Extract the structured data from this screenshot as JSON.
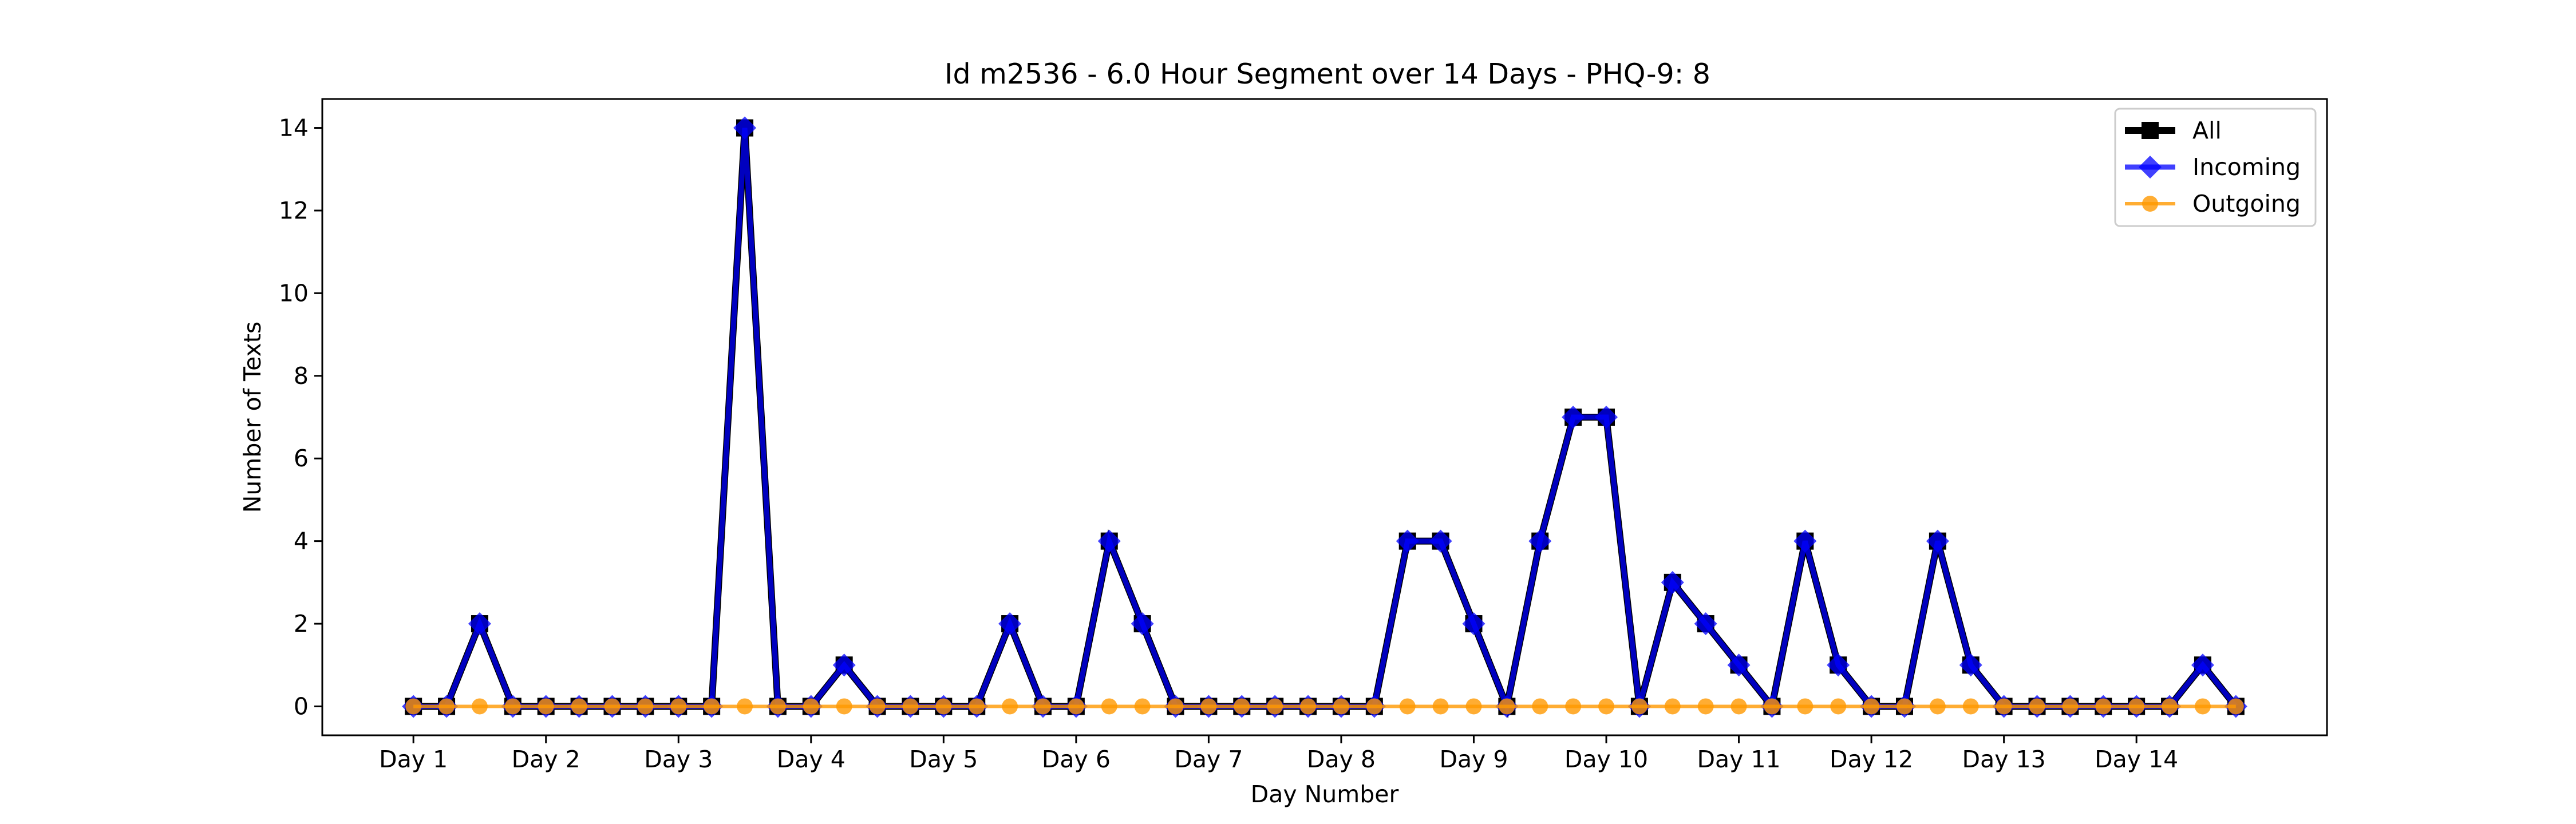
{
  "chart_data": {
    "type": "line",
    "title": "Id m2536 - 6.0 Hour Segment over 14 Days - PHQ-9: 8",
    "xlabel": "Day Number",
    "ylabel": "Number of Texts",
    "ylim": [
      -0.7,
      14.7
    ],
    "xlim": [
      -2.75,
      57.75
    ],
    "yticks": [
      0,
      2,
      4,
      6,
      8,
      10,
      12,
      14
    ],
    "xtick_positions": [
      0,
      4,
      8,
      12,
      16,
      20,
      24,
      28,
      32,
      36,
      40,
      44,
      48,
      52
    ],
    "xtick_labels": [
      "Day 1",
      "Day 2",
      "Day 3",
      "Day 4",
      "Day 5",
      "Day 6",
      "Day 7",
      "Day 8",
      "Day 9",
      "Day 10",
      "Day 11",
      "Day 12",
      "Day 13",
      "Day 14"
    ],
    "grid": false,
    "legend_position": "top-right",
    "x": [
      0,
      1,
      2,
      3,
      4,
      5,
      6,
      7,
      8,
      9,
      10,
      11,
      12,
      13,
      14,
      15,
      16,
      17,
      18,
      19,
      20,
      21,
      22,
      23,
      24,
      25,
      26,
      27,
      28,
      29,
      30,
      31,
      32,
      33,
      34,
      35,
      36,
      37,
      38,
      39,
      40,
      41,
      42,
      43,
      44,
      45,
      46,
      47,
      48,
      49,
      50,
      51,
      52,
      53,
      54,
      55
    ],
    "series": [
      {
        "name": "All",
        "color": "#000000",
        "marker": "square",
        "values": [
          0,
          0,
          2,
          0,
          0,
          0,
          0,
          0,
          0,
          0,
          14,
          0,
          0,
          1,
          0,
          0,
          0,
          0,
          2,
          0,
          0,
          4,
          2,
          0,
          0,
          0,
          0,
          0,
          0,
          0,
          4,
          4,
          2,
          0,
          4,
          7,
          7,
          0,
          3,
          2,
          1,
          0,
          4,
          1,
          0,
          0,
          4,
          1,
          0,
          0,
          0,
          0,
          0,
          0,
          1,
          0
        ]
      },
      {
        "name": "Incoming",
        "color": "#0000ff",
        "marker": "diamond",
        "values": [
          0,
          0,
          2,
          0,
          0,
          0,
          0,
          0,
          0,
          0,
          14,
          0,
          0,
          1,
          0,
          0,
          0,
          0,
          2,
          0,
          0,
          4,
          2,
          0,
          0,
          0,
          0,
          0,
          0,
          0,
          4,
          4,
          2,
          0,
          4,
          7,
          7,
          0,
          3,
          2,
          1,
          0,
          4,
          1,
          0,
          0,
          4,
          1,
          0,
          0,
          0,
          0,
          0,
          0,
          1,
          0
        ]
      },
      {
        "name": "Outgoing",
        "color": "#ff9900",
        "marker": "circle",
        "values": [
          0,
          0,
          0,
          0,
          0,
          0,
          0,
          0,
          0,
          0,
          0,
          0,
          0,
          0,
          0,
          0,
          0,
          0,
          0,
          0,
          0,
          0,
          0,
          0,
          0,
          0,
          0,
          0,
          0,
          0,
          0,
          0,
          0,
          0,
          0,
          0,
          0,
          0,
          0,
          0,
          0,
          0,
          0,
          0,
          0,
          0,
          0,
          0,
          0,
          0,
          0,
          0,
          0,
          0,
          0,
          0
        ]
      }
    ]
  }
}
